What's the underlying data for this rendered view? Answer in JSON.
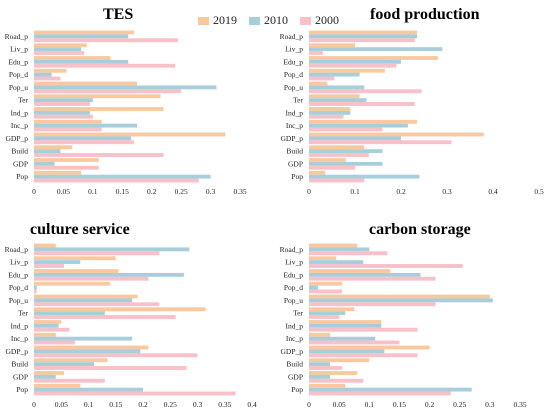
{
  "legend": [
    {
      "label": "2019",
      "color": "#f8c9a0"
    },
    {
      "label": "2010",
      "color": "#a8cedc"
    },
    {
      "label": "2000",
      "color": "#f8c0c8"
    }
  ],
  "chart_data": [
    {
      "type": "bar",
      "orientation": "horizontal",
      "title": "TES",
      "categories": [
        "Road_p",
        "Liv_p",
        "Edu_p",
        "Pop_d",
        "Pop_u",
        "Ter",
        "Ind_p",
        "Inc_p",
        "GDP_p",
        "Build",
        "GDP",
        "Pop"
      ],
      "series": [
        {
          "name": "2019",
          "values": [
            0.17,
            0.09,
            0.13,
            0.055,
            0.175,
            0.215,
            0.22,
            0.115,
            0.325,
            0.065,
            0.11,
            0.08
          ]
        },
        {
          "name": "2010",
          "values": [
            0.16,
            0.08,
            0.16,
            0.03,
            0.31,
            0.1,
            0.095,
            0.175,
            0.165,
            0.045,
            0.035,
            0.3
          ]
        },
        {
          "name": "2000",
          "values": [
            0.245,
            0.085,
            0.24,
            0.045,
            0.25,
            0.095,
            0.1,
            0.115,
            0.17,
            0.22,
            0.11,
            0.28
          ]
        }
      ],
      "xticks": [
        "0",
        "0.05",
        "0.1",
        "0.15",
        "0.2",
        "0.25",
        "0.3",
        "0.35"
      ],
      "xlim": [
        0,
        0.35
      ],
      "xlabel": "",
      "ylabel": ""
    },
    {
      "type": "bar",
      "orientation": "horizontal",
      "title": "food production",
      "categories": [
        "Road_p",
        "Liv_p",
        "Edu_p",
        "Pop_d",
        "Pop_u",
        "Ter",
        "Ind_p",
        "Inc_p",
        "GDP_p",
        "Build",
        "GDP",
        "Pop"
      ],
      "series": [
        {
          "name": "2019",
          "values": [
            0.235,
            0.1,
            0.28,
            0.165,
            0.04,
            0.11,
            0.09,
            0.235,
            0.38,
            0.12,
            0.08,
            0.035
          ]
        },
        {
          "name": "2010",
          "values": [
            0.235,
            0.29,
            0.2,
            0.11,
            0.12,
            0.125,
            0.09,
            0.215,
            0.2,
            0.16,
            0.16,
            0.24
          ]
        },
        {
          "name": "2000",
          "values": [
            0.23,
            0.03,
            0.19,
            0.055,
            0.245,
            0.23,
            0.075,
            0.16,
            0.31,
            0.13,
            0.1,
            0.12
          ]
        }
      ],
      "xticks": [
        "0",
        "0.1",
        "0.2",
        "0.3",
        "0.4",
        "0.5"
      ],
      "xlim": [
        0,
        0.5
      ],
      "xlabel": "",
      "ylabel": ""
    },
    {
      "type": "bar",
      "orientation": "horizontal",
      "title": "culture service",
      "categories": [
        "Road_p",
        "Liv_p",
        "Edu_p",
        "Pop_d",
        "Pop_u",
        "Ter",
        "Ind_p",
        "Inc_p",
        "GDP_p",
        "Build",
        "GDP",
        "Pop"
      ],
      "series": [
        {
          "name": "2019",
          "values": [
            0.04,
            0.15,
            0.155,
            0.14,
            0.19,
            0.315,
            0.05,
            0.04,
            0.21,
            0.135,
            0.055,
            0.085
          ]
        },
        {
          "name": "2010",
          "values": [
            0.285,
            0.085,
            0.275,
            0.005,
            0.18,
            0.13,
            0.045,
            0.18,
            0.195,
            0.11,
            0.04,
            0.2
          ]
        },
        {
          "name": "2000",
          "values": [
            0.23,
            0.055,
            0.21,
            0.005,
            0.23,
            0.26,
            0.065,
            0.075,
            0.3,
            0.28,
            0.13,
            0.37
          ]
        }
      ],
      "xticks": [
        "0",
        "0.05",
        "0.1",
        "0.15",
        "0.2",
        "0.25",
        "0.3",
        "0.35",
        "0.4"
      ],
      "xlim": [
        0,
        0.4
      ],
      "xlabel": "",
      "ylabel": ""
    },
    {
      "type": "bar",
      "orientation": "horizontal",
      "title": "carbon storage",
      "categories": [
        "Road_p",
        "Liv_p",
        "Edu_p",
        "Pop_d",
        "Pop_u",
        "Ter",
        "Ind_p",
        "Inc_p",
        "GDP_p",
        "Build",
        "GDP",
        "Pop"
      ],
      "series": [
        {
          "name": "2019",
          "values": [
            0.08,
            0.045,
            0.135,
            0.055,
            0.3,
            0.075,
            0.12,
            0.035,
            0.2,
            0.1,
            0.08,
            0.06
          ]
        },
        {
          "name": "2010",
          "values": [
            0.1,
            0.09,
            0.185,
            0.015,
            0.305,
            0.06,
            0.12,
            0.11,
            0.125,
            0.035,
            0.035,
            0.27
          ]
        },
        {
          "name": "2000",
          "values": [
            0.13,
            0.255,
            0.21,
            0.055,
            0.21,
            0.05,
            0.18,
            0.15,
            0.18,
            0.055,
            0.09,
            0.235
          ]
        }
      ],
      "xticks": [
        "0",
        "0.05",
        "0.1",
        "0.15",
        "0.2",
        "0.25",
        "0.3",
        "0.35"
      ],
      "xlim": [
        0,
        0.35
      ],
      "xlabel": "",
      "ylabel": ""
    }
  ]
}
